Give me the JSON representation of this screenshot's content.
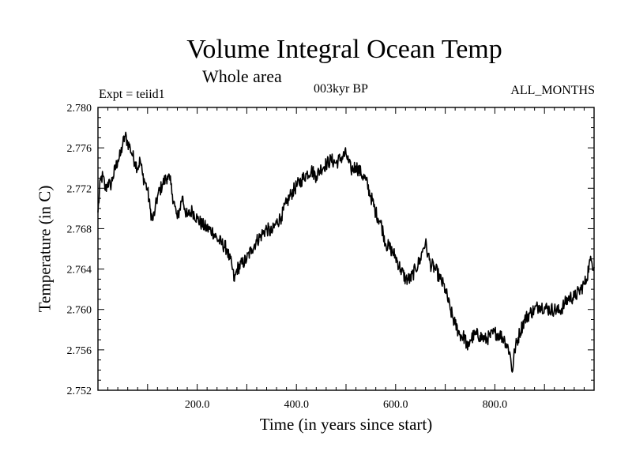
{
  "chart_data": {
    "type": "line",
    "title": "Volume Integral Ocean Temp",
    "subtitle": "Whole area",
    "annotations": {
      "left": "Expt = teiid1",
      "center": "003kyr BP",
      "right": "ALL_MONTHS"
    },
    "xlabel": "Time (in years since start)",
    "ylabel": "Temperature (in C)",
    "xlim": [
      0,
      1000
    ],
    "ylim": [
      2.752,
      2.78
    ],
    "x_ticks": [
      {
        "value": 200,
        "label": "200.0"
      },
      {
        "value": 400,
        "label": "400.0"
      },
      {
        "value": 600,
        "label": "600.0"
      },
      {
        "value": 800,
        "label": "800.0"
      }
    ],
    "y_ticks": [
      {
        "value": 2.752,
        "label": "2.752"
      },
      {
        "value": 2.756,
        "label": "2.756"
      },
      {
        "value": 2.76,
        "label": "2.760"
      },
      {
        "value": 2.764,
        "label": "2.764"
      },
      {
        "value": 2.768,
        "label": "2.768"
      },
      {
        "value": 2.772,
        "label": "2.772"
      },
      {
        "value": 2.776,
        "label": "2.776"
      },
      {
        "value": 2.78,
        "label": "2.780"
      }
    ],
    "grid": false,
    "series": [
      {
        "color": "#000000",
        "x": [
          0,
          5,
          10,
          15,
          20,
          25,
          30,
          40,
          45,
          50,
          55,
          60,
          65,
          70,
          75,
          80,
          85,
          90,
          95,
          100,
          105,
          110,
          115,
          120,
          130,
          140,
          145,
          150,
          155,
          160,
          165,
          170,
          175,
          180,
          190,
          200,
          210,
          220,
          230,
          240,
          250,
          260,
          265,
          270,
          275,
          280,
          290,
          300,
          310,
          320,
          330,
          340,
          350,
          360,
          370,
          380,
          390,
          400,
          410,
          420,
          430,
          440,
          450,
          460,
          470,
          480,
          490,
          500,
          505,
          510,
          520,
          530,
          540,
          550,
          560,
          570,
          575,
          580,
          590,
          600,
          610,
          620,
          630,
          640,
          650,
          655,
          660,
          665,
          670,
          680,
          690,
          700,
          710,
          720,
          730,
          740,
          745,
          750,
          760,
          770,
          780,
          790,
          800,
          810,
          820,
          830,
          835,
          840,
          850,
          860,
          870,
          880,
          890,
          900,
          910,
          920,
          930,
          940,
          950,
          960,
          970,
          980,
          985,
          990,
          995,
          1000
        ],
        "y": [
          2.7696,
          2.7728,
          2.7732,
          2.7718,
          2.7726,
          2.7722,
          2.7731,
          2.7748,
          2.7752,
          2.7764,
          2.7772,
          2.7765,
          2.776,
          2.7752,
          2.7746,
          2.774,
          2.7748,
          2.7733,
          2.7726,
          2.7718,
          2.77,
          2.7688,
          2.7698,
          2.7712,
          2.7724,
          2.7732,
          2.7728,
          2.7714,
          2.7702,
          2.769,
          2.77,
          2.7712,
          2.77,
          2.7692,
          2.7698,
          2.769,
          2.7684,
          2.768,
          2.7678,
          2.767,
          2.7665,
          2.766,
          2.765,
          2.7643,
          2.7628,
          2.764,
          2.7645,
          2.765,
          2.766,
          2.7668,
          2.7674,
          2.768,
          2.7676,
          2.7686,
          2.7692,
          2.7705,
          2.7715,
          2.7722,
          2.7728,
          2.7734,
          2.7738,
          2.7732,
          2.774,
          2.7744,
          2.7748,
          2.7745,
          2.775,
          2.7754,
          2.7746,
          2.7738,
          2.7742,
          2.7735,
          2.7728,
          2.7712,
          2.7696,
          2.7686,
          2.7676,
          2.7665,
          2.766,
          2.7652,
          2.764,
          2.763,
          2.763,
          2.764,
          2.765,
          2.766,
          2.7666,
          2.7655,
          2.7645,
          2.764,
          2.763,
          2.762,
          2.76,
          2.7585,
          2.7575,
          2.7572,
          2.756,
          2.757,
          2.7575,
          2.7574,
          2.757,
          2.7573,
          2.7577,
          2.7575,
          2.757,
          2.7558,
          2.7538,
          2.756,
          2.7577,
          2.759,
          2.7596,
          2.76,
          2.7604,
          2.7602,
          2.76,
          2.76,
          2.7598,
          2.7605,
          2.7612,
          2.7612,
          2.7618,
          2.7625,
          2.763,
          2.7645,
          2.7648,
          2.7642
        ]
      }
    ]
  }
}
